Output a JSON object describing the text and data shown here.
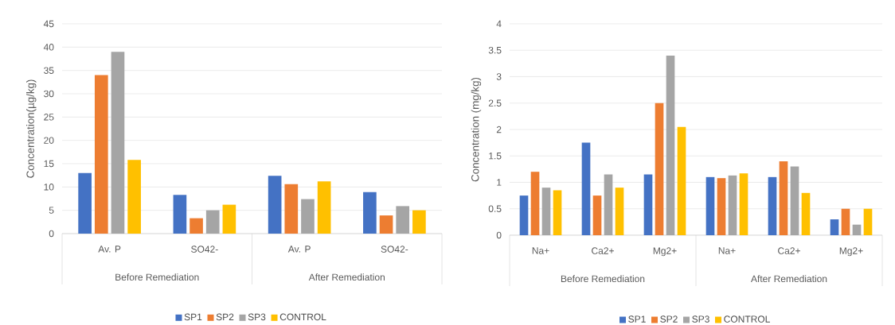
{
  "chart_data": [
    {
      "type": "bar",
      "ylabel": "Concentration(µg/kg)",
      "categories": [
        "Av. P",
        "SO42-",
        "Av. P",
        "SO42-"
      ],
      "annotations": [
        "Before Remediation",
        "After Remediation"
      ],
      "series": [
        {
          "name": "SP1",
          "color": "#4472c4",
          "values": [
            13,
            8.3,
            12.4,
            8.9
          ]
        },
        {
          "name": "SP2",
          "color": "#ed7d31",
          "values": [
            34,
            3.3,
            10.6,
            3.9
          ]
        },
        {
          "name": "SP3",
          "color": "#a5a5a5",
          "values": [
            39,
            5,
            7.4,
            5.9
          ]
        },
        {
          "name": "CONTROL",
          "color": "#ffc000",
          "values": [
            15.8,
            6.2,
            11.2,
            5
          ]
        }
      ],
      "ylim": [
        0,
        45
      ],
      "yticks": [
        0,
        5,
        10,
        15,
        20,
        25,
        30,
        35,
        40,
        45
      ],
      "grid": "y",
      "legend": "bottom"
    },
    {
      "type": "bar",
      "ylabel": "Concentration (mg/kg)",
      "categories": [
        "Na+",
        "Ca2+",
        "Mg2+",
        "Na+",
        "Ca2+",
        "Mg2+"
      ],
      "annotations": [
        "Before Remediation",
        "After Remediation"
      ],
      "series": [
        {
          "name": "SP1",
          "color": "#4472c4",
          "values": [
            0.75,
            1.75,
            1.15,
            1.1,
            1.1,
            0.3
          ]
        },
        {
          "name": "SP2",
          "color": "#ed7d31",
          "values": [
            1.2,
            0.75,
            2.5,
            1.08,
            1.4,
            0.5
          ]
        },
        {
          "name": "SP3",
          "color": "#a5a5a5",
          "values": [
            0.9,
            1.15,
            3.4,
            1.13,
            1.3,
            0.2
          ]
        },
        {
          "name": "CONTROL",
          "color": "#ffc000",
          "values": [
            0.85,
            0.9,
            2.05,
            1.17,
            0.8,
            0.5
          ]
        }
      ],
      "ylim": [
        0,
        4
      ],
      "yticks": [
        0,
        0.5,
        1,
        1.5,
        2,
        2.5,
        3,
        3.5,
        4
      ],
      "grid": "y",
      "legend": "bottom"
    }
  ]
}
